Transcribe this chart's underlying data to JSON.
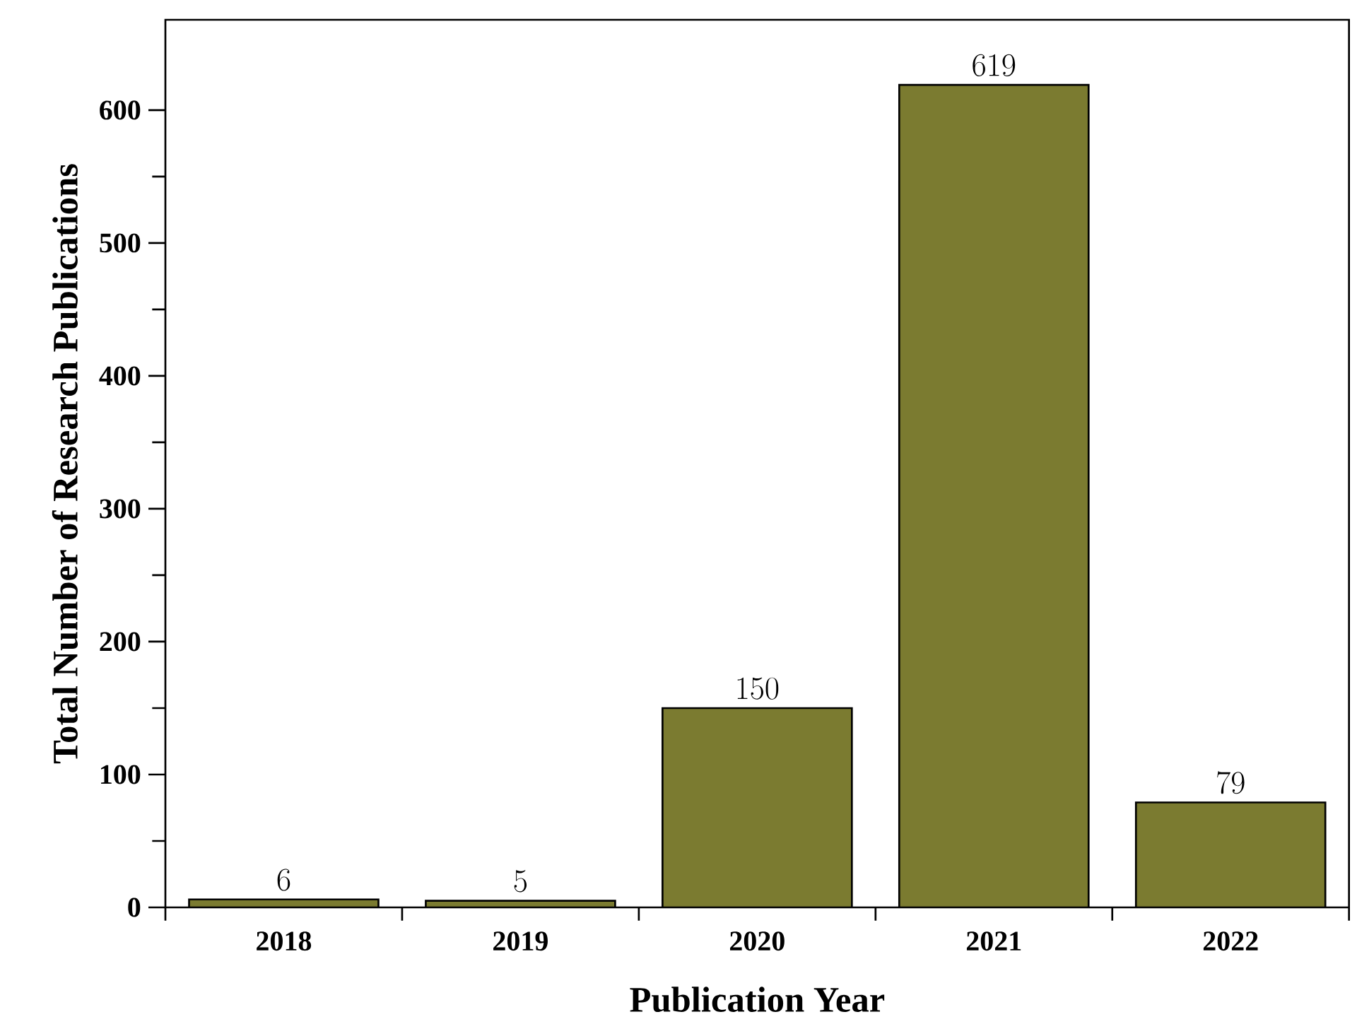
{
  "chart_data": {
    "type": "bar",
    "xlabel": "Publication Year",
    "ylabel": "Total Number of Research Publications",
    "categories": [
      "2018",
      "2019",
      "2020",
      "2021",
      "2022"
    ],
    "values": [
      6,
      5,
      150,
      619,
      79
    ],
    "color": "#7b7b30",
    "ylim": [
      0,
      668
    ],
    "yticks": [
      0,
      100,
      200,
      300,
      400,
      500,
      600
    ],
    "data_labels": true
  }
}
